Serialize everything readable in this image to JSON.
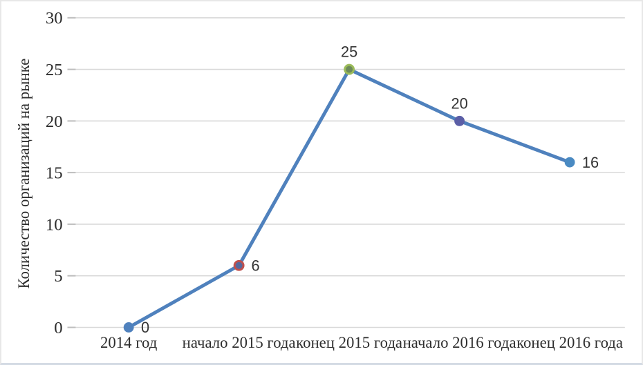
{
  "chart_data": {
    "type": "line",
    "title": "",
    "xlabel": "",
    "ylabel": "Количество организаций на рынке",
    "categories": [
      "2014 год",
      "начало 2015 года",
      "конец 2015 года",
      "начало 2016 года",
      "конец 2016 года"
    ],
    "series": [
      {
        "name": "Количество организаций на рынке",
        "values": [
          0,
          6,
          25,
          20,
          16
        ]
      }
    ],
    "data_labels": [
      "0",
      "6",
      "25",
      "20",
      "16"
    ],
    "data_label_positions": [
      "right",
      "right",
      "above",
      "above",
      "right"
    ],
    "ylim": [
      0,
      30
    ],
    "ytick_step": 5,
    "yticks": [
      "0",
      "5",
      "10",
      "15",
      "20",
      "25",
      "30"
    ],
    "grid": "horizontal-only",
    "legend": "none",
    "colors": {
      "line": "#4f81bd",
      "grid": "#d9d9d9",
      "tick": "#bdbdbd",
      "text": "#2e2e2e",
      "markers": [
        {
          "fill": "#4f81bd",
          "stroke": "#4f81bd"
        },
        {
          "fill": "#56689d",
          "stroke": "#c0504d"
        },
        {
          "fill": "#6d8a5a",
          "stroke": "#9bbb59"
        },
        {
          "fill": "#5b5ea6",
          "stroke": "#5b5ea6"
        },
        {
          "fill": "#4a8ac2",
          "stroke": "#4a8ac2"
        }
      ]
    }
  }
}
